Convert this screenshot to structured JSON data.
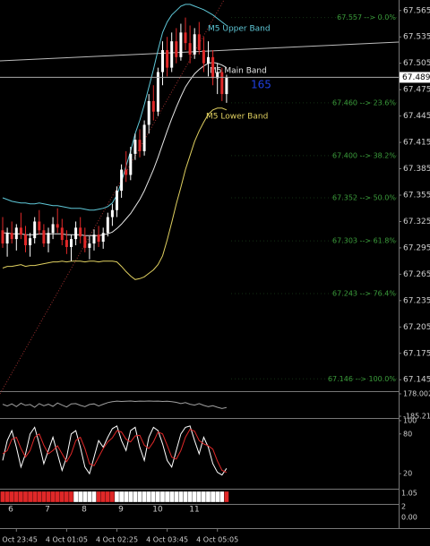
{
  "chart_data": [
    {
      "type": "candlestick",
      "categories": [
        null,
        null,
        null,
        "4 Oct 23:45",
        null,
        null,
        null,
        null,
        null,
        null,
        null,
        null,
        null,
        null,
        "4 Oct 01:05",
        null,
        null,
        null,
        null,
        null,
        null,
        null,
        null,
        null,
        null,
        "4 Oct 02:25",
        null,
        null,
        null,
        null,
        null,
        null,
        null,
        null,
        null,
        null,
        "4 Oct 03:45",
        null,
        null,
        null,
        null,
        null,
        null,
        null,
        null,
        null,
        null,
        "4 Oct 05:05",
        null,
        null
      ],
      "ohlc": [
        [
          67.315,
          67.33,
          67.295,
          67.3
        ],
        [
          67.3,
          67.318,
          67.285,
          67.312
        ],
        [
          67.312,
          67.325,
          67.3,
          67.305
        ],
        [
          67.305,
          67.322,
          67.292,
          67.318
        ],
        [
          67.318,
          67.335,
          67.305,
          67.31
        ],
        [
          67.31,
          67.32,
          67.29,
          67.298
        ],
        [
          67.298,
          67.312,
          67.285,
          67.306
        ],
        [
          67.306,
          67.33,
          67.3,
          67.325
        ],
        [
          67.325,
          67.338,
          67.31,
          67.315
        ],
        [
          67.315,
          67.322,
          67.296,
          67.3
        ],
        [
          67.3,
          67.318,
          67.29,
          67.312
        ],
        [
          67.312,
          67.33,
          67.305,
          67.322
        ],
        [
          67.322,
          67.34,
          67.312,
          67.318
        ],
        [
          67.318,
          67.328,
          67.298,
          67.304
        ],
        [
          67.304,
          67.315,
          67.288,
          67.296
        ],
        [
          67.296,
          67.31,
          67.28,
          67.305
        ],
        [
          67.305,
          67.325,
          67.298,
          67.318
        ],
        [
          67.318,
          67.33,
          67.3,
          67.308
        ],
        [
          67.308,
          67.318,
          67.29,
          67.295
        ],
        [
          67.295,
          67.308,
          67.282,
          67.3
        ],
        [
          67.3,
          67.316,
          67.292,
          67.31
        ],
        [
          67.31,
          67.32,
          67.296,
          67.302
        ],
        [
          67.302,
          67.318,
          67.294,
          67.312
        ],
        [
          67.312,
          67.335,
          67.308,
          67.33
        ],
        [
          67.33,
          67.345,
          67.32,
          67.338
        ],
        [
          67.338,
          67.365,
          67.33,
          67.36
        ],
        [
          67.36,
          67.39,
          67.352,
          67.384
        ],
        [
          67.384,
          67.405,
          67.37,
          67.378
        ],
        [
          67.378,
          67.41,
          67.372,
          67.402
        ],
        [
          67.402,
          67.425,
          67.395,
          67.418
        ],
        [
          67.418,
          67.43,
          67.398,
          67.405
        ],
        [
          67.405,
          67.44,
          67.4,
          67.435
        ],
        [
          67.435,
          67.47,
          67.425,
          67.462
        ],
        [
          67.462,
          67.48,
          67.44,
          67.45
        ],
        [
          67.45,
          67.5,
          67.445,
          67.495
        ],
        [
          67.495,
          67.53,
          67.48,
          67.52
        ],
        [
          67.52,
          67.535,
          67.49,
          67.5
        ],
        [
          67.5,
          67.54,
          67.495,
          67.53
        ],
        [
          67.53,
          67.545,
          67.505,
          67.512
        ],
        [
          67.512,
          67.55,
          67.508,
          67.54
        ],
        [
          67.54,
          67.557,
          67.52,
          67.528
        ],
        [
          67.528,
          67.548,
          67.505,
          67.515
        ],
        [
          67.515,
          67.545,
          67.51,
          67.538
        ],
        [
          67.538,
          67.552,
          67.515,
          67.52
        ],
        [
          67.52,
          67.535,
          67.495,
          67.505
        ],
        [
          67.505,
          67.53,
          67.49,
          67.512
        ],
        [
          67.512,
          67.52,
          67.48,
          67.488
        ],
        [
          67.488,
          67.505,
          67.47,
          67.495
        ],
        [
          67.495,
          67.5,
          67.462,
          67.47
        ],
        [
          67.47,
          67.492,
          67.46,
          67.489
        ]
      ],
      "up_color": "#ffffff",
      "down_color": "#e02828",
      "series": [
        {
          "name": "M5 Upper Band",
          "color": "#5fc8d8",
          "values": [
            67.352,
            67.35,
            67.348,
            67.347,
            67.346,
            67.346,
            67.345,
            67.345,
            67.346,
            67.345,
            67.344,
            67.343,
            67.343,
            67.342,
            67.341,
            67.34,
            67.34,
            67.34,
            67.339,
            67.338,
            67.338,
            67.339,
            67.34,
            67.342,
            67.346,
            67.355,
            67.37,
            67.388,
            67.405,
            67.425,
            67.44,
            67.458,
            67.478,
            67.498,
            67.52,
            67.54,
            67.552,
            67.56,
            67.565,
            67.57,
            67.572,
            67.572,
            67.57,
            67.568,
            67.566,
            67.563,
            67.56,
            67.556,
            67.552,
            67.548
          ]
        },
        {
          "name": "M5 Main Band",
          "color": "#e6e6e6",
          "values": [
            67.312,
            67.312,
            67.311,
            67.311,
            67.311,
            67.31,
            67.31,
            67.31,
            67.311,
            67.311,
            67.311,
            67.311,
            67.311,
            67.311,
            67.31,
            67.31,
            67.31,
            67.31,
            67.309,
            67.309,
            67.309,
            67.309,
            67.31,
            67.311,
            67.313,
            67.317,
            67.322,
            67.328,
            67.334,
            67.342,
            67.35,
            67.36,
            67.372,
            67.384,
            67.398,
            67.413,
            67.428,
            67.442,
            67.455,
            67.467,
            67.478,
            67.486,
            67.493,
            67.498,
            67.502,
            67.505,
            67.506,
            67.505,
            67.503,
            67.5
          ]
        },
        {
          "name": "M5 Lower Band",
          "color": "#e0d060",
          "values": [
            67.272,
            67.274,
            67.274,
            67.275,
            67.276,
            67.274,
            67.275,
            67.275,
            67.276,
            67.277,
            67.278,
            67.279,
            67.279,
            67.28,
            67.279,
            67.28,
            67.28,
            67.28,
            67.279,
            67.28,
            67.28,
            67.279,
            67.28,
            67.28,
            67.28,
            67.279,
            67.274,
            67.268,
            67.263,
            67.259,
            67.26,
            67.262,
            67.266,
            67.27,
            67.276,
            67.286,
            67.304,
            67.324,
            67.345,
            67.364,
            67.384,
            67.4,
            67.416,
            67.428,
            67.438,
            67.447,
            67.452,
            67.454,
            67.454,
            67.452
          ]
        }
      ],
      "ylim": [
        67.132,
        67.577
      ],
      "yticks": [
        67.565,
        67.535,
        67.505,
        67.475,
        67.445,
        67.415,
        67.385,
        67.355,
        67.325,
        67.295,
        67.265,
        67.235,
        67.205,
        67.175,
        67.145
      ],
      "current_price": 67.489,
      "annotation": "165",
      "fib_color": "#3a9a3a",
      "fib_levels": [
        {
          "value": 67.557,
          "label": "67.557 --> 0.0%"
        },
        {
          "value": 67.46,
          "label": "67.460 --> 23.6%"
        },
        {
          "value": 67.4,
          "label": "67.400 --> 38.2%"
        },
        {
          "value": 67.352,
          "label": "67.352 --> 50.0%"
        },
        {
          "value": 67.303,
          "label": "67.303 --> 61.8%"
        },
        {
          "value": 67.243,
          "label": "67.243 --> 76.4%"
        },
        {
          "value": 67.146,
          "label": "67.146 --> 100.0%"
        }
      ]
    },
    {
      "type": "line",
      "color": "#a0a0a0",
      "values": [
        10,
        -20,
        15,
        -30,
        25,
        -10,
        5,
        -40,
        20,
        -15,
        10,
        -25,
        30,
        -5,
        -35,
        15,
        20,
        -10,
        -30,
        5,
        15,
        -20,
        10,
        35,
        50,
        60,
        55,
        58,
        62,
        55,
        60,
        58,
        62,
        57,
        60,
        55,
        58,
        52,
        40,
        20,
        35,
        10,
        -5,
        20,
        -10,
        -30,
        -15,
        -40,
        -60,
        -45
      ],
      "ylim": [
        -185.2112,
        178.0023
      ],
      "yticks": [
        178.0023,
        -185.2112
      ]
    },
    {
      "type": "line",
      "series": [
        {
          "color": "#ffffff",
          "values": [
            40,
            70,
            85,
            60,
            30,
            50,
            80,
            90,
            65,
            35,
            55,
            75,
            50,
            25,
            45,
            80,
            85,
            60,
            30,
            20,
            45,
            70,
            60,
            75,
            88,
            92,
            70,
            55,
            85,
            90,
            60,
            40,
            75,
            90,
            85,
            65,
            40,
            30,
            55,
            80,
            90,
            92,
            70,
            50,
            75,
            60,
            35,
            22,
            18,
            28
          ]
        },
        {
          "color": "#e02828",
          "values": [
            50,
            55,
            72,
            75,
            58,
            45,
            55,
            75,
            80,
            63,
            50,
            55,
            62,
            50,
            38,
            50,
            70,
            75,
            58,
            35,
            32,
            45,
            58,
            68,
            74,
            85,
            83,
            72,
            68,
            77,
            78,
            63,
            58,
            68,
            83,
            80,
            63,
            45,
            42,
            55,
            75,
            87,
            84,
            70,
            65,
            62,
            57,
            39,
            25,
            22
          ]
        }
      ],
      "ylim": [
        0,
        100
      ],
      "yticks": [
        100,
        80,
        20
      ]
    },
    {
      "type": "signal",
      "up_color": "#ffffff",
      "down_color": "#e02828",
      "values": [
        -1,
        -1,
        -1,
        -1,
        -1,
        -1,
        -1,
        -1,
        -1,
        -1,
        -1,
        -1,
        -1,
        -1,
        -1,
        -1,
        1,
        1,
        1,
        1,
        1,
        -1,
        -1,
        -1,
        -1,
        1,
        1,
        1,
        1,
        1,
        1,
        1,
        1,
        1,
        1,
        1,
        1,
        1,
        1,
        1,
        1,
        1,
        1,
        1,
        1,
        1,
        1,
        1,
        1,
        -1
      ],
      "scale_labels": [
        "1.05",
        "2",
        "0.00"
      ],
      "period_labels": [
        6,
        7,
        8,
        9,
        10,
        11
      ]
    }
  ]
}
